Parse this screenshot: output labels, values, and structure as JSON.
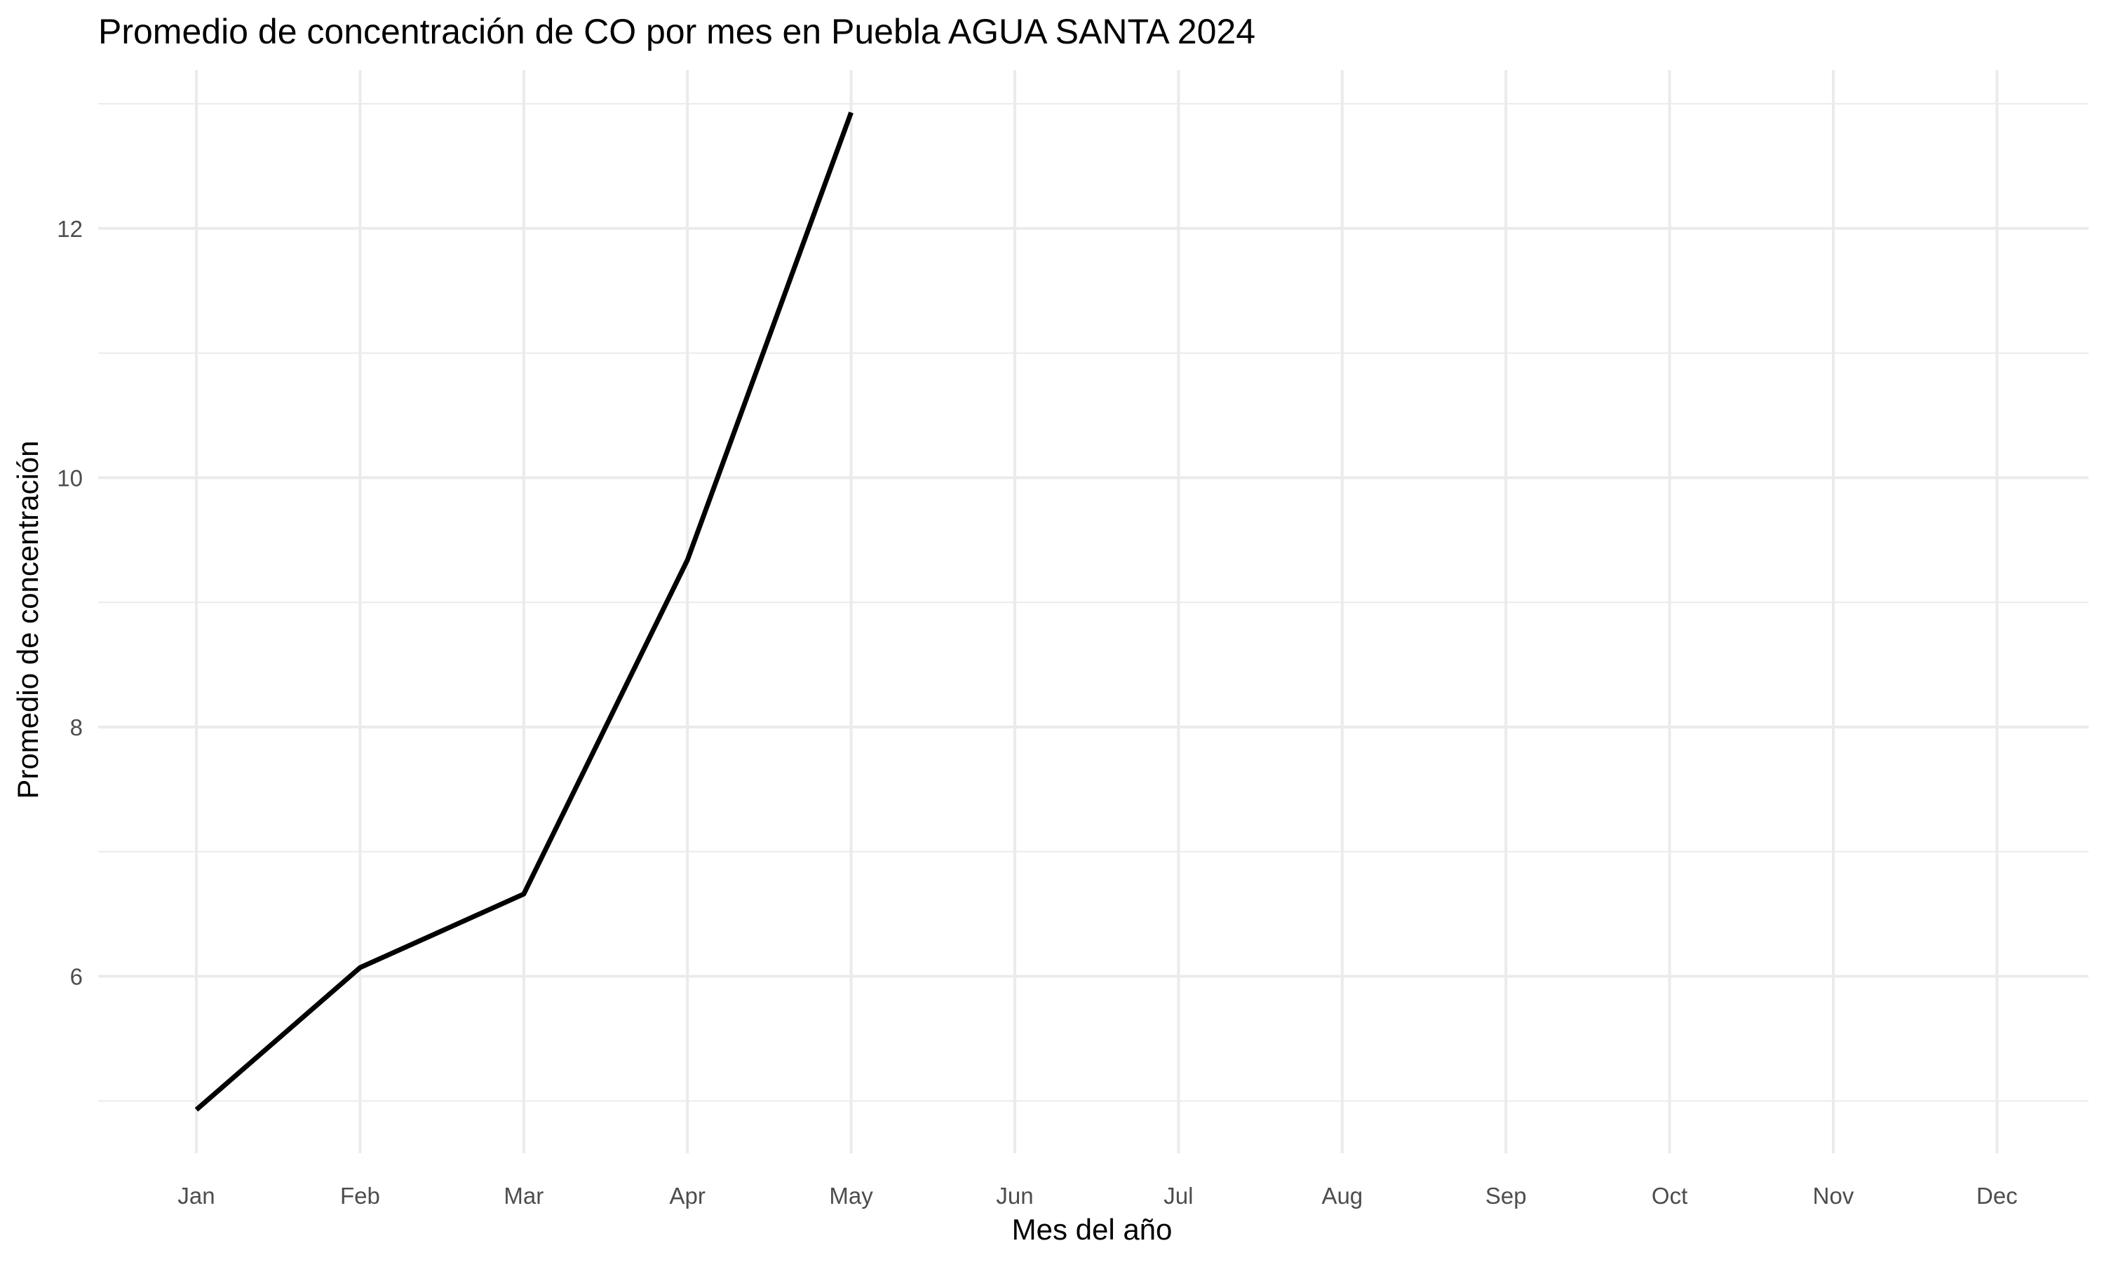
{
  "chart_data": {
    "type": "line",
    "title": "Promedio de concentración de CO por mes en Puebla AGUA SANTA 2024",
    "xlabel": "Mes del año",
    "ylabel": "Promedio de concentración",
    "categories": [
      "Jan",
      "Feb",
      "Mar",
      "Apr",
      "May",
      "Jun",
      "Jul",
      "Aug",
      "Sep",
      "Oct",
      "Nov",
      "Dec"
    ],
    "series": [
      {
        "values": [
          4.93,
          6.07,
          6.66,
          9.34,
          12.93,
          null,
          null,
          null,
          null,
          null,
          null,
          null
        ]
      }
    ],
    "ylim": [
      4.58,
      13.27
    ],
    "yticks": [
      6,
      8,
      10,
      12
    ],
    "yticks_labels": [
      "6",
      "8",
      "10",
      "12"
    ],
    "y_minor_ticks": [
      5,
      7,
      9,
      11,
      13
    ],
    "grid": true,
    "legend": "none",
    "colors": {
      "line": "#000000",
      "grid": "#ebebeb",
      "tick_text": "#4d4d4d",
      "background": "#ffffff"
    }
  }
}
